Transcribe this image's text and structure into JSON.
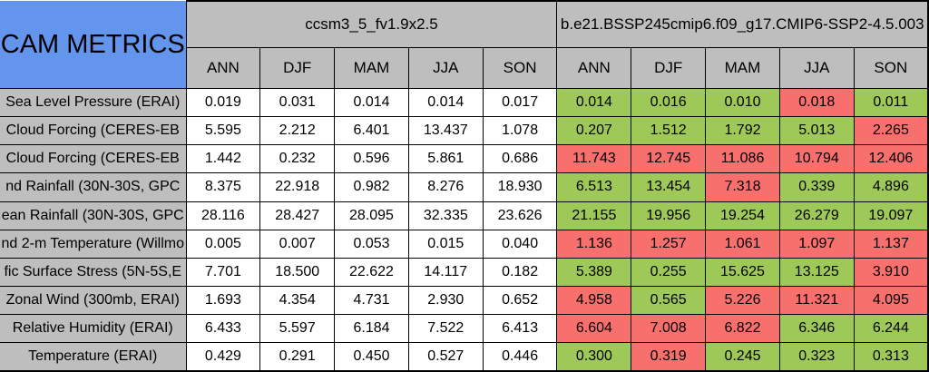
{
  "corner": {
    "label": "CAM METRICS"
  },
  "colors": {
    "header_blue": "#6495ED",
    "header_gray": "#BEBEBE",
    "cell_white": "#FFFFFF",
    "good_green": "#9EC858",
    "bad_red": "#F8706E",
    "border_black": "#000000"
  },
  "chart_data": {
    "type": "table",
    "title": "CAM METRICS",
    "column_groups": [
      "ccsm3_5_fv1.9x2.5",
      "b.e21.BSSP245cmip6.f09_g17.CMIP6-SSP2-4.5.003"
    ],
    "season_columns": [
      "ANN",
      "DJF",
      "MAM",
      "JJA",
      "SON"
    ],
    "cell_status_colors": {
      "green": "#9EC858",
      "red": "#F8706E"
    },
    "rows": [
      {
        "label": "Sea Level Pressure (ERAI)",
        "group1_values": [
          "0.019",
          "0.031",
          "0.014",
          "0.014",
          "0.017"
        ],
        "group2_values": [
          "0.014",
          "0.016",
          "0.010",
          "0.018",
          "0.011"
        ],
        "group2_status": [
          "green",
          "green",
          "green",
          "red",
          "green"
        ]
      },
      {
        "label": "Cloud Forcing (CERES-EB",
        "group1_values": [
          "5.595",
          "2.212",
          "6.401",
          "13.437",
          "1.078"
        ],
        "group2_values": [
          "0.207",
          "1.512",
          "1.792",
          "5.013",
          "2.265"
        ],
        "group2_status": [
          "green",
          "green",
          "green",
          "green",
          "red"
        ]
      },
      {
        "label": "Cloud Forcing (CERES-EB",
        "group1_values": [
          "1.442",
          "0.232",
          "0.596",
          "5.861",
          "0.686"
        ],
        "group2_values": [
          "11.743",
          "12.745",
          "11.086",
          "10.794",
          "12.406"
        ],
        "group2_status": [
          "red",
          "red",
          "red",
          "red",
          "red"
        ]
      },
      {
        "label": "nd Rainfall (30N-30S, GPC",
        "group1_values": [
          "8.375",
          "22.918",
          "0.982",
          "8.276",
          "18.930"
        ],
        "group2_values": [
          "6.513",
          "13.454",
          "7.318",
          "0.339",
          "4.896"
        ],
        "group2_status": [
          "green",
          "green",
          "red",
          "green",
          "green"
        ]
      },
      {
        "label": "ean Rainfall (30N-30S, GPC",
        "group1_values": [
          "28.116",
          "28.427",
          "28.095",
          "32.335",
          "23.626"
        ],
        "group2_values": [
          "21.155",
          "19.956",
          "19.254",
          "26.279",
          "19.097"
        ],
        "group2_status": [
          "green",
          "green",
          "green",
          "green",
          "green"
        ]
      },
      {
        "label": "nd 2-m Temperature (Willmo",
        "group1_values": [
          "0.005",
          "0.007",
          "0.053",
          "0.015",
          "0.040"
        ],
        "group2_values": [
          "1.136",
          "1.257",
          "1.061",
          "1.097",
          "1.137"
        ],
        "group2_status": [
          "red",
          "red",
          "red",
          "red",
          "red"
        ]
      },
      {
        "label": "fic Surface Stress (5N-5S,E",
        "group1_values": [
          "7.701",
          "18.500",
          "22.622",
          "14.117",
          "0.182"
        ],
        "group2_values": [
          "5.389",
          "0.255",
          "15.625",
          "13.125",
          "3.910"
        ],
        "group2_status": [
          "green",
          "green",
          "green",
          "green",
          "red"
        ]
      },
      {
        "label": "Zonal Wind (300mb, ERAI)",
        "group1_values": [
          "1.693",
          "4.354",
          "4.731",
          "2.930",
          "0.652"
        ],
        "group2_values": [
          "4.958",
          "0.565",
          "5.226",
          "11.321",
          "4.095"
        ],
        "group2_status": [
          "red",
          "green",
          "red",
          "red",
          "red"
        ]
      },
      {
        "label": "Relative Humidity (ERAI)",
        "group1_values": [
          "6.433",
          "5.597",
          "6.184",
          "7.522",
          "6.413"
        ],
        "group2_values": [
          "6.604",
          "7.008",
          "6.822",
          "6.346",
          "6.244"
        ],
        "group2_status": [
          "red",
          "red",
          "red",
          "green",
          "green"
        ]
      },
      {
        "label": "Temperature (ERAI)",
        "group1_values": [
          "0.429",
          "0.291",
          "0.450",
          "0.527",
          "0.446"
        ],
        "group2_values": [
          "0.300",
          "0.319",
          "0.245",
          "0.323",
          "0.313"
        ],
        "group2_status": [
          "green",
          "red",
          "green",
          "green",
          "green"
        ]
      }
    ]
  }
}
